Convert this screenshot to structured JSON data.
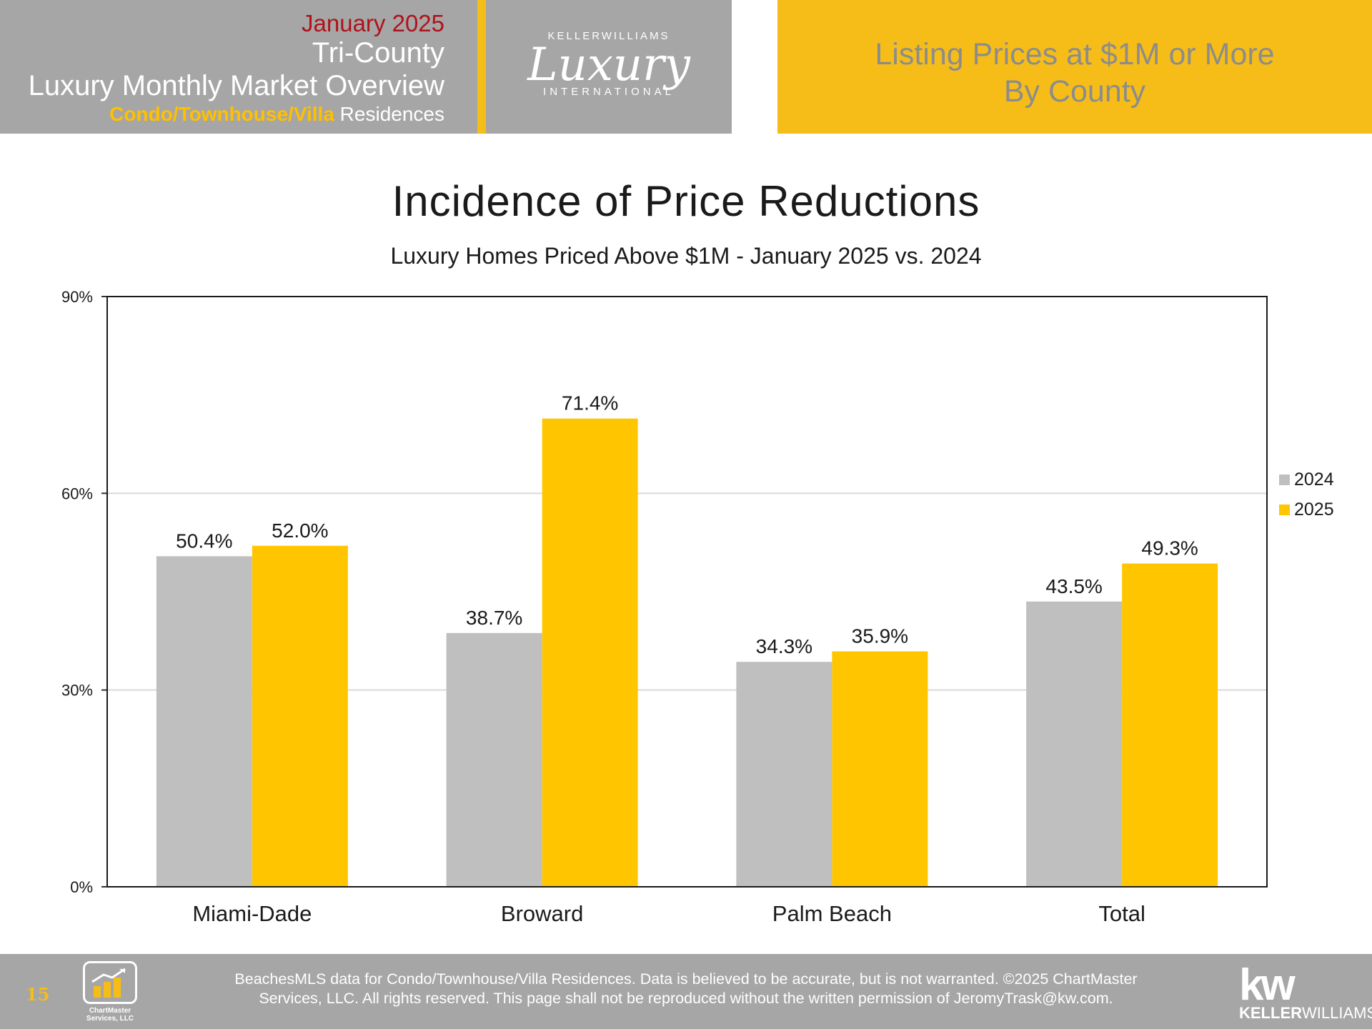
{
  "header": {
    "month": "January 2025",
    "region": "Tri-County",
    "title": "Luxury Monthly Market Overview",
    "property_type_accent": "Condo/Townhouse/Villa",
    "property_type_rest": " Residences",
    "logo": {
      "top": "KELLERWILLIAMS",
      "script": "Luxury",
      "bottom": "INTERNATIONAL"
    },
    "section_line1": "Listing Prices at $1M or More",
    "section_line2": "By County"
  },
  "chart_data": {
    "type": "bar",
    "title": "Incidence of Price Reductions",
    "subtitle": "Luxury Homes Priced Above $1M - January 2025 vs. 2024",
    "categories": [
      "Miami-Dade",
      "Broward",
      "Palm Beach",
      "Total"
    ],
    "series": [
      {
        "name": "2024",
        "values": [
          50.4,
          38.7,
          34.3,
          43.5
        ],
        "labels": [
          "50.4%",
          "38.7%",
          "34.3%",
          "43.5%"
        ],
        "color": "#bfbfbf"
      },
      {
        "name": "2025",
        "values": [
          52.0,
          71.4,
          35.9,
          49.3
        ],
        "labels": [
          "52.0%",
          "71.4%",
          "35.9%",
          "49.3%"
        ],
        "color": "#ffc600"
      }
    ],
    "ylim": [
      0,
      90
    ],
    "yticks": [
      0,
      30,
      60,
      90
    ],
    "ytick_labels": [
      "0%",
      "30%",
      "60%",
      "90%"
    ],
    "grid": true,
    "legend_position": "right"
  },
  "footer": {
    "page_number": "15",
    "chartmaster_label": "ChartMaster Services, LLC",
    "disclaimer_line1": "BeachesMLS data for Condo/Townhouse/Villa Residences.  Data is believed to be accurate, but is not warranted.   ©2025  ChartMaster",
    "disclaimer_line2": "Services, LLC.  All rights reserved. This page shall not be reproduced without the written permission of JeromyTrask@kw.com.",
    "kw_mark": "kw",
    "kw_name_bold": "KELLER",
    "kw_name_rest": "WILLIAMS."
  }
}
